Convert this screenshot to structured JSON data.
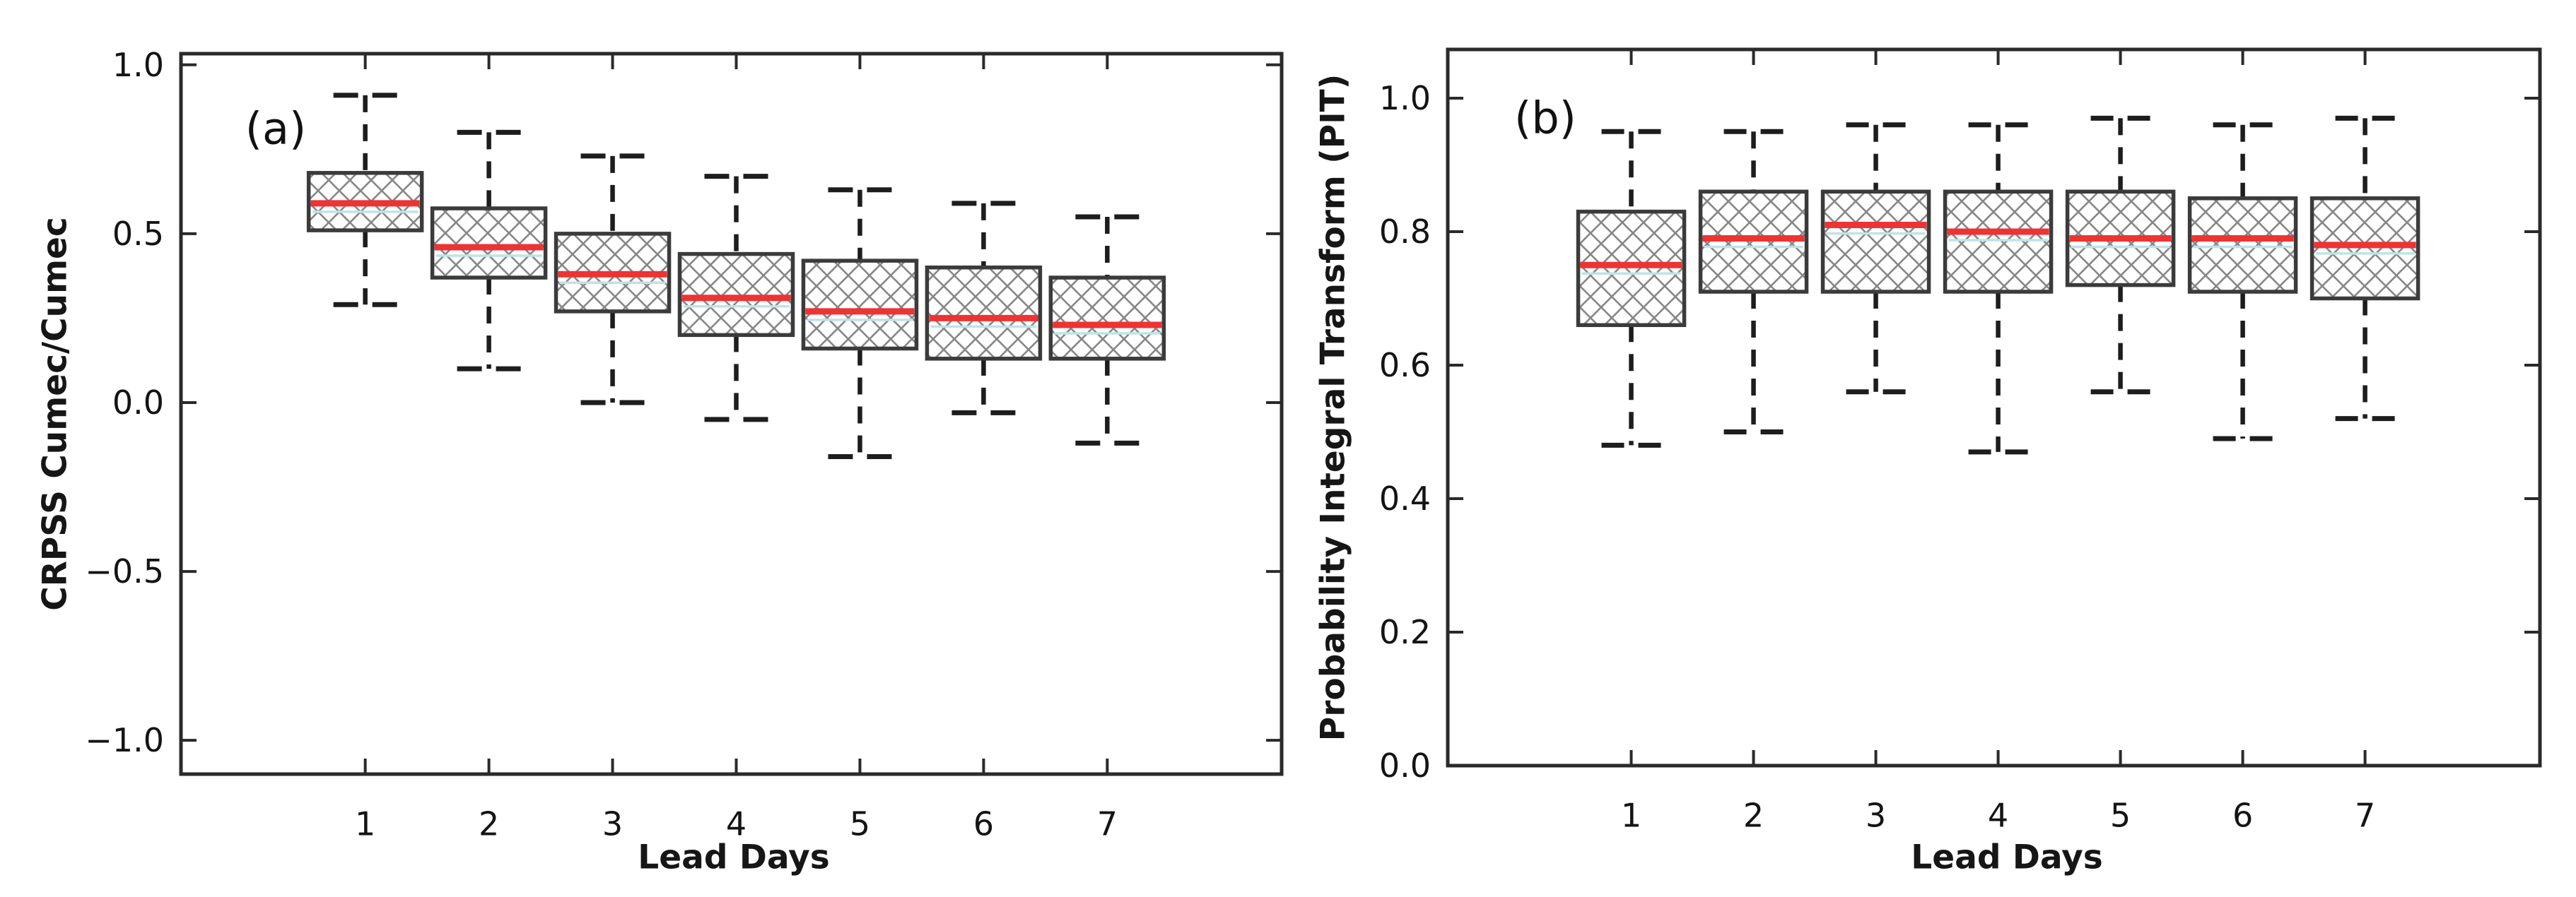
{
  "figure": {
    "background_color": "#ffffff",
    "description": "Two-panel box-and-whisker figure versus forecast lead time"
  },
  "style": {
    "median_color": "#ee3333",
    "mean_line_color": "#bfe3e6",
    "box_edge_color": "#3b3b3b",
    "hatch_color": "#878787",
    "whisker_color": "#1d1d1d",
    "spine_color": "#2a2a2a",
    "tick_text_color": "#141414"
  },
  "chart_data": [
    {
      "type": "box",
      "panel_label": "(a)",
      "xlabel": "Lead Days",
      "ylabel": "CRPSS Cumec/Cumec",
      "categories": [
        "1",
        "2",
        "3",
        "4",
        "5",
        "6",
        "7"
      ],
      "ytick_labels": [
        "1.0",
        "0.5",
        "0.0",
        "−0.5",
        "−1.0"
      ],
      "ytick_values": [
        1.0,
        0.5,
        0.0,
        -0.5,
        -1.0
      ],
      "ylim": [
        -1.1,
        1.033
      ],
      "xlim": [
        -0.49,
        8.41
      ],
      "grid": false,
      "legend": "none",
      "boxes": [
        {
          "lead_day": 1,
          "whisker_low": 0.29,
          "q1": 0.51,
          "median": 0.59,
          "q3": 0.68,
          "whisker_high": 0.91
        },
        {
          "lead_day": 2,
          "whisker_low": 0.1,
          "q1": 0.37,
          "median": 0.46,
          "q3": 0.575,
          "whisker_high": 0.8
        },
        {
          "lead_day": 3,
          "whisker_low": 0.0,
          "q1": 0.27,
          "median": 0.38,
          "q3": 0.5,
          "whisker_high": 0.73
        },
        {
          "lead_day": 4,
          "whisker_low": -0.05,
          "q1": 0.2,
          "median": 0.31,
          "q3": 0.44,
          "whisker_high": 0.67
        },
        {
          "lead_day": 5,
          "whisker_low": -0.16,
          "q1": 0.16,
          "median": 0.27,
          "q3": 0.42,
          "whisker_high": 0.63
        },
        {
          "lead_day": 6,
          "whisker_low": -0.03,
          "q1": 0.13,
          "median": 0.25,
          "q3": 0.4,
          "whisker_high": 0.59
        },
        {
          "lead_day": 7,
          "whisker_low": -0.12,
          "q1": 0.13,
          "median": 0.23,
          "q3": 0.37,
          "whisker_high": 0.55
        }
      ]
    },
    {
      "type": "box",
      "panel_label": "(b)",
      "xlabel": "Lead Days",
      "ylabel": "Probability Integral Transform (PIT)",
      "categories": [
        "1",
        "2",
        "3",
        "4",
        "5",
        "6",
        "7"
      ],
      "ytick_labels": [
        "1.0",
        "0.8",
        "0.6",
        "0.4",
        "0.2",
        "0.0"
      ],
      "ytick_values": [
        1.0,
        0.8,
        0.6,
        0.4,
        0.2,
        0.0
      ],
      "ylim": [
        0.0,
        1.073
      ],
      "xlim": [
        -0.5,
        8.43
      ],
      "grid": false,
      "legend": "none",
      "boxes": [
        {
          "lead_day": 1,
          "whisker_low": 0.48,
          "q1": 0.66,
          "median": 0.75,
          "q3": 0.83,
          "whisker_high": 0.95
        },
        {
          "lead_day": 2,
          "whisker_low": 0.5,
          "q1": 0.71,
          "median": 0.79,
          "q3": 0.86,
          "whisker_high": 0.95
        },
        {
          "lead_day": 3,
          "whisker_low": 0.56,
          "q1": 0.71,
          "median": 0.81,
          "q3": 0.86,
          "whisker_high": 0.96
        },
        {
          "lead_day": 4,
          "whisker_low": 0.47,
          "q1": 0.71,
          "median": 0.8,
          "q3": 0.86,
          "whisker_high": 0.96
        },
        {
          "lead_day": 5,
          "whisker_low": 0.56,
          "q1": 0.72,
          "median": 0.79,
          "q3": 0.86,
          "whisker_high": 0.97
        },
        {
          "lead_day": 6,
          "whisker_low": 0.49,
          "q1": 0.71,
          "median": 0.79,
          "q3": 0.85,
          "whisker_high": 0.96
        },
        {
          "lead_day": 7,
          "whisker_low": 0.52,
          "q1": 0.7,
          "median": 0.78,
          "q3": 0.85,
          "whisker_high": 0.97
        }
      ]
    }
  ]
}
